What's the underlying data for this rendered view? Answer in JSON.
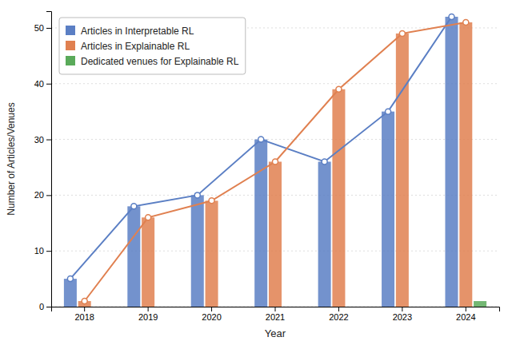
{
  "chart_data": {
    "type": "bar",
    "xlabel": "Year",
    "ylabel": "Number of Articles/Venues",
    "categories": [
      "2018",
      "2019",
      "2020",
      "2021",
      "2022",
      "2023",
      "2024"
    ],
    "series": [
      {
        "name": "Articles in Interpretable RL",
        "color": "#5b7fc4",
        "marker": "circle",
        "values": [
          5,
          18,
          20,
          30,
          26,
          35,
          52
        ]
      },
      {
        "name": "Articles in Explainable RL",
        "color": "#e08050",
        "marker": "circle",
        "values": [
          1,
          16,
          19,
          26,
          39,
          49,
          51
        ]
      },
      {
        "name": "Dedicated venues for Explainable RL",
        "color": "#5aaa5a",
        "values": [
          0,
          0,
          0,
          0,
          0,
          0,
          1
        ]
      }
    ],
    "ylim": [
      0,
      53
    ],
    "yticks": [
      0,
      10,
      20,
      30,
      40,
      50
    ],
    "grid": true,
    "legend": "upper left"
  }
}
